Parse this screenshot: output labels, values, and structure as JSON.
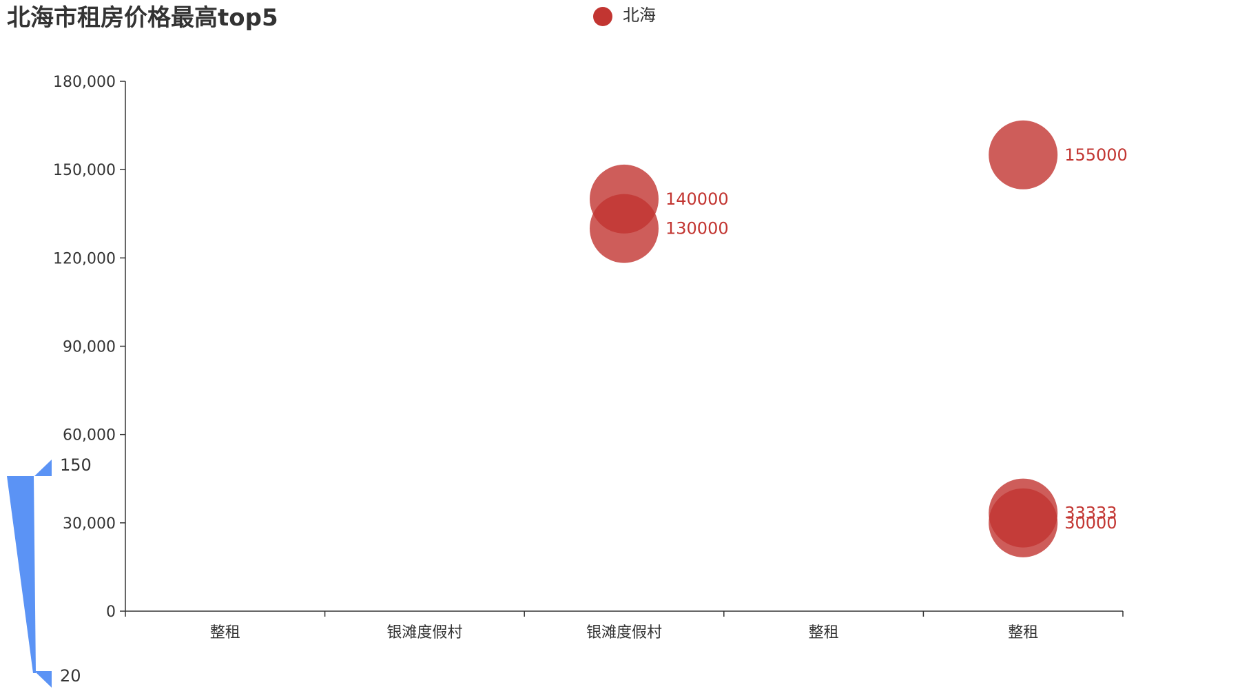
{
  "chart_data": {
    "type": "scatter",
    "title": "北海市租房价格最高top5",
    "legend": {
      "items": [
        "北海"
      ],
      "position": "top-center"
    },
    "categories": [
      "整租",
      "银滩度假村",
      "银滩度假村",
      "整租",
      "整租"
    ],
    "y_ticks": [
      "0",
      "30,000",
      "60,000",
      "90,000",
      "120,000",
      "150,000",
      "180,000"
    ],
    "ylim": [
      0,
      180000
    ],
    "series": [
      {
        "name": "北海",
        "color": "#c23531",
        "points": [
          {
            "x_index": 2,
            "y": 140000,
            "label": "140000"
          },
          {
            "x_index": 2,
            "y": 130000,
            "label": "130000"
          },
          {
            "x_index": 4,
            "y": 155000,
            "label": "155000"
          },
          {
            "x_index": 4,
            "y": 33333,
            "label": "33333"
          },
          {
            "x_index": 4,
            "y": 30000,
            "label": "30000"
          }
        ]
      }
    ],
    "visual_map": {
      "max_label": "150",
      "min_label": "20",
      "color": "#5b93f5"
    },
    "xlabel": "",
    "ylabel": "",
    "grid": false
  }
}
